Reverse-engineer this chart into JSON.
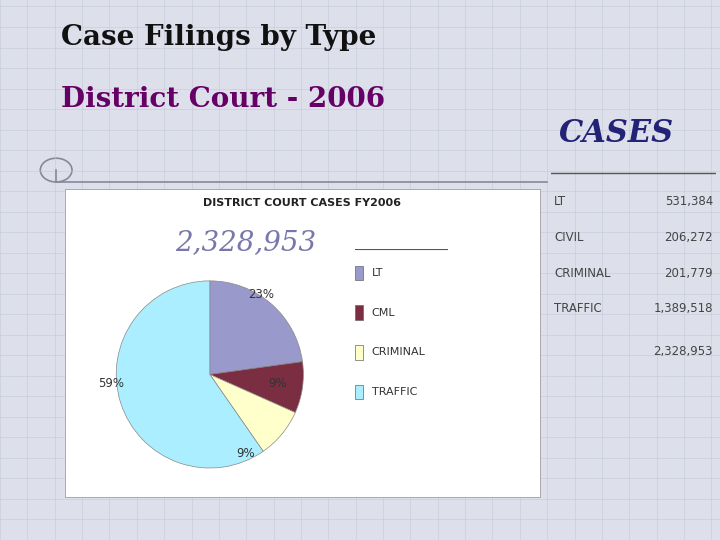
{
  "title_line1": "Case Filings by Type",
  "title_line2": "District Court - 2006",
  "chart_title": "DISTRICT COURT CASES FY2006",
  "total_label": "2,328,953",
  "labels": [
    "LT",
    "CML",
    "CRIMINAL",
    "TRAFFIC"
  ],
  "values": [
    531384,
    206272,
    201779,
    1389518
  ],
  "colors": [
    "#9999cc",
    "#7b2d42",
    "#ffffcc",
    "#aaeeff"
  ],
  "cases_header": "CASES",
  "cases_rows": [
    [
      "LT",
      "531,384"
    ],
    [
      "CIVIL",
      "206,272"
    ],
    [
      "CRIMINAL",
      "201,779"
    ],
    [
      "TRAFFIC",
      "1,389,518"
    ]
  ],
  "cases_total": "2,328,953",
  "bg_color": "#dde0ea",
  "chart_bg": "#ffffff",
  "title1_color": "#111111",
  "title2_color": "#660066",
  "total_color": "#7777aa",
  "cases_header_color": "#222277",
  "cases_text_color": "#444444",
  "grid_color": "#c5cad8"
}
